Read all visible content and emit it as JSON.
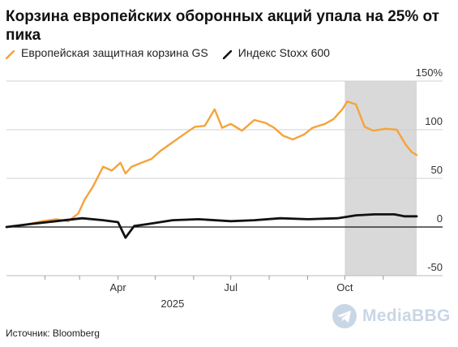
{
  "chart_data": {
    "type": "line",
    "title": "Корзина европейских оборонных акций упала на 25% от пика",
    "xlabel": "",
    "ylabel": "",
    "x_ticks": [
      "Apr",
      "Jul",
      "Oct"
    ],
    "x_year_label": "2025",
    "y_ticks": [
      "150%",
      "100",
      "50",
      "0",
      "-50"
    ],
    "ylim": [
      -50,
      150
    ],
    "x_range": [
      "2025-01-01",
      "2025-11-28"
    ],
    "grid": true,
    "legend_position": "top-left",
    "shaded_region": [
      "2025-10-01",
      "2025-11-28"
    ],
    "series": [
      {
        "name": "Европейская защитная корзина GS",
        "color": "#f5a33b",
        "points": [
          [
            "2025-01-01",
            0
          ],
          [
            "2025-01-15",
            2
          ],
          [
            "2025-01-30",
            6
          ],
          [
            "2025-02-10",
            8
          ],
          [
            "2025-02-20",
            6
          ],
          [
            "2025-02-28",
            14
          ],
          [
            "2025-03-05",
            28
          ],
          [
            "2025-03-12",
            42
          ],
          [
            "2025-03-20",
            62
          ],
          [
            "2025-03-27",
            58
          ],
          [
            "2025-04-03",
            66
          ],
          [
            "2025-04-07",
            55
          ],
          [
            "2025-04-12",
            62
          ],
          [
            "2025-04-20",
            66
          ],
          [
            "2025-04-28",
            70
          ],
          [
            "2025-05-05",
            78
          ],
          [
            "2025-05-15",
            87
          ],
          [
            "2025-05-25",
            96
          ],
          [
            "2025-06-02",
            103
          ],
          [
            "2025-06-10",
            104
          ],
          [
            "2025-06-18",
            121
          ],
          [
            "2025-06-24",
            102
          ],
          [
            "2025-07-01",
            106
          ],
          [
            "2025-07-10",
            99
          ],
          [
            "2025-07-20",
            110
          ],
          [
            "2025-07-29",
            107
          ],
          [
            "2025-08-05",
            102
          ],
          [
            "2025-08-12",
            94
          ],
          [
            "2025-08-20",
            90
          ],
          [
            "2025-08-29",
            95
          ],
          [
            "2025-09-05",
            102
          ],
          [
            "2025-09-15",
            106
          ],
          [
            "2025-09-22",
            111
          ],
          [
            "2025-09-29",
            121
          ],
          [
            "2025-10-03",
            129
          ],
          [
            "2025-10-10",
            126
          ],
          [
            "2025-10-17",
            103
          ],
          [
            "2025-10-24",
            99
          ],
          [
            "2025-11-03",
            101
          ],
          [
            "2025-11-12",
            100
          ],
          [
            "2025-11-19",
            85
          ],
          [
            "2025-11-24",
            77
          ],
          [
            "2025-11-28",
            74
          ]
        ]
      },
      {
        "name": "Индекс Stoxx 600",
        "color": "#111111",
        "points": [
          [
            "2025-01-01",
            0
          ],
          [
            "2025-01-20",
            3
          ],
          [
            "2025-02-10",
            6
          ],
          [
            "2025-03-03",
            9
          ],
          [
            "2025-03-20",
            7
          ],
          [
            "2025-04-01",
            5
          ],
          [
            "2025-04-04",
            -3
          ],
          [
            "2025-04-07",
            -11
          ],
          [
            "2025-04-14",
            1
          ],
          [
            "2025-04-25",
            3
          ],
          [
            "2025-05-15",
            7
          ],
          [
            "2025-06-05",
            8
          ],
          [
            "2025-07-01",
            6
          ],
          [
            "2025-07-20",
            7
          ],
          [
            "2025-08-10",
            9
          ],
          [
            "2025-09-01",
            8
          ],
          [
            "2025-09-25",
            9
          ],
          [
            "2025-10-10",
            12
          ],
          [
            "2025-10-25",
            13
          ],
          [
            "2025-11-10",
            13
          ],
          [
            "2025-11-18",
            11
          ],
          [
            "2025-11-28",
            11
          ]
        ]
      }
    ]
  },
  "source": "Источник: Bloomberg",
  "watermark": "MediaBBG"
}
